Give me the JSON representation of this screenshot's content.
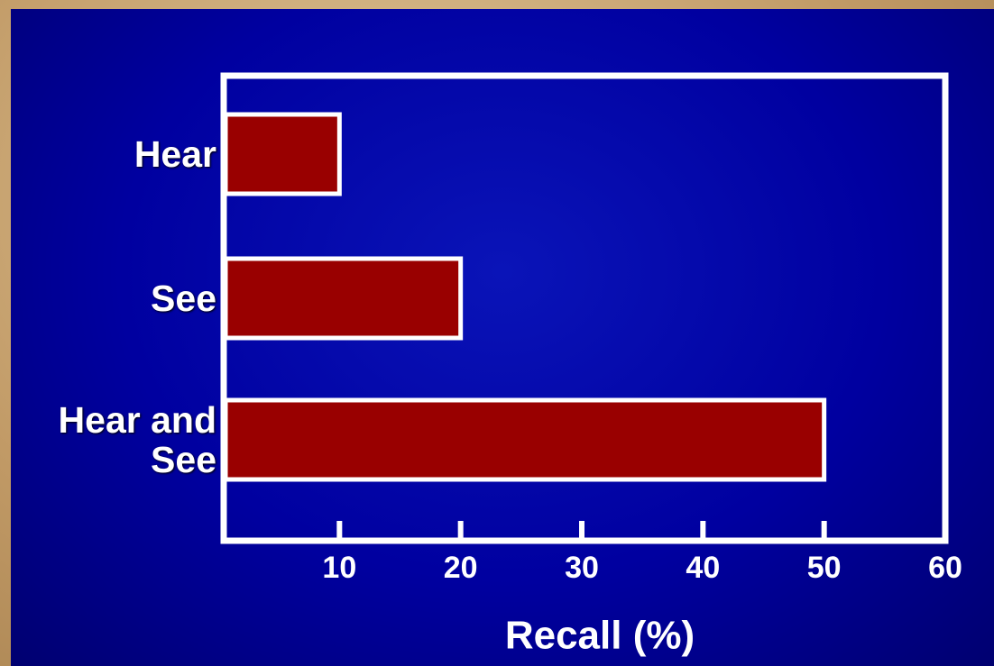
{
  "chart_data": {
    "type": "bar",
    "orientation": "horizontal",
    "categories": [
      "Hear",
      "See",
      "Hear and See"
    ],
    "values": [
      10,
      20,
      50
    ],
    "color": "#990000",
    "xlabel": "Recall (%)",
    "xlim": [
      0,
      60
    ],
    "xticks": [
      10,
      20,
      30,
      40,
      50,
      60
    ]
  }
}
